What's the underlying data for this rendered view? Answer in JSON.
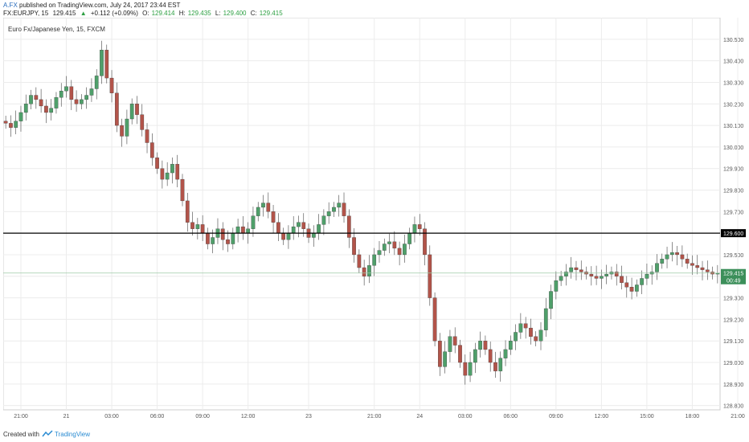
{
  "header": {
    "author": "A.FX",
    "published_text": "published on TradingView.com, July 24, 2017 23:44 EST",
    "symbol": "FX:EURJPY, 15",
    "last": "129.415",
    "change_arrow": "▲",
    "change": "+0.112 (+0.09%)",
    "o_label": "O:",
    "o": "129.414",
    "h_label": "H:",
    "h": "129.435",
    "l_label": "L:",
    "l": "129.400",
    "c_label": "C:",
    "c": "129.415"
  },
  "legend": {
    "title": "Euro Fx/Japanese Yen, 15, FXCM"
  },
  "footer": {
    "created_with": "Created with",
    "brand": "TradingView"
  },
  "colors": {
    "up": "#4f9f6a",
    "down": "#b2544a",
    "grid": "#ececec",
    "axis": "#999999",
    "hline": "#000000",
    "price_tag": "#3c8f5a"
  },
  "chart_data": {
    "type": "candlestick",
    "y_ticks": [
      "130.500",
      "130.400",
      "130.300",
      "130.200",
      "130.100",
      "130.000",
      "129.900",
      "129.800",
      "129.700",
      "129.600",
      "129.500",
      "129.400",
      "129.300",
      "129.200",
      "129.100",
      "129.000",
      "128.900",
      "128.800"
    ],
    "ylim": [
      128.78,
      130.6
    ],
    "x_ticks": [
      {
        "label": "21:00",
        "i": 3
      },
      {
        "label": "21",
        "i": 12
      },
      {
        "label": "03:00",
        "i": 21
      },
      {
        "label": "06:00",
        "i": 30
      },
      {
        "label": "09:00",
        "i": 39
      },
      {
        "label": "12:00",
        "i": 48
      },
      {
        "label": "23",
        "i": 60
      },
      {
        "label": "21:00",
        "i": 73
      },
      {
        "label": "24",
        "i": 82
      },
      {
        "label": "03:00",
        "i": 91
      },
      {
        "label": "06:00",
        "i": 100
      },
      {
        "label": "09:00",
        "i": 109
      },
      {
        "label": "12:00",
        "i": 118
      },
      {
        "label": "15:00",
        "i": 127
      },
      {
        "label": "18:00",
        "i": 136
      },
      {
        "label": "21:00",
        "i": 145
      },
      {
        "label": "25",
        "i": 154
      }
    ],
    "horizontal_line": {
      "value": 129.6,
      "label": "129.600"
    },
    "current_price": {
      "value": 129.415,
      "label": "129.415",
      "countdown": "00:49"
    },
    "closes": [
      130.11,
      130.09,
      130.12,
      130.16,
      130.2,
      130.24,
      130.22,
      130.19,
      130.16,
      130.18,
      130.23,
      130.26,
      130.28,
      130.22,
      130.2,
      130.22,
      130.24,
      130.27,
      130.33,
      130.45,
      130.32,
      130.25,
      130.1,
      130.05,
      130.13,
      130.2,
      130.15,
      130.08,
      130.02,
      129.95,
      129.9,
      129.85,
      129.88,
      129.92,
      129.85,
      129.75,
      129.65,
      129.62,
      129.64,
      129.6,
      129.55,
      129.58,
      129.62,
      129.57,
      129.55,
      129.6,
      129.63,
      129.6,
      129.62,
      129.68,
      129.72,
      129.74,
      129.7,
      129.65,
      129.6,
      129.57,
      129.6,
      129.63,
      129.65,
      129.62,
      129.58,
      129.6,
      129.64,
      129.68,
      129.7,
      129.72,
      129.74,
      129.68,
      129.58,
      129.5,
      129.44,
      129.4,
      129.45,
      129.5,
      129.52,
      129.55,
      129.56,
      129.53,
      129.5,
      129.55,
      129.6,
      129.64,
      129.62,
      129.5,
      129.3,
      129.1,
      128.98,
      129.05,
      129.12,
      129.08,
      129.0,
      128.94,
      129.0,
      129.06,
      129.1,
      129.06,
      129.0,
      128.96,
      129.02,
      129.06,
      129.1,
      129.14,
      129.18,
      129.16,
      129.12,
      129.1,
      129.15,
      129.25,
      129.33,
      129.38,
      129.4,
      129.42,
      129.44,
      129.43,
      129.42,
      129.41,
      129.4,
      129.39,
      129.4,
      129.41,
      129.42,
      129.4,
      129.37,
      129.35,
      129.33,
      129.36,
      129.39,
      129.41,
      129.42,
      129.46,
      129.48,
      129.5,
      129.51,
      129.5,
      129.48,
      129.46,
      129.45,
      129.44,
      129.43,
      129.42,
      129.41,
      129.415
    ]
  }
}
